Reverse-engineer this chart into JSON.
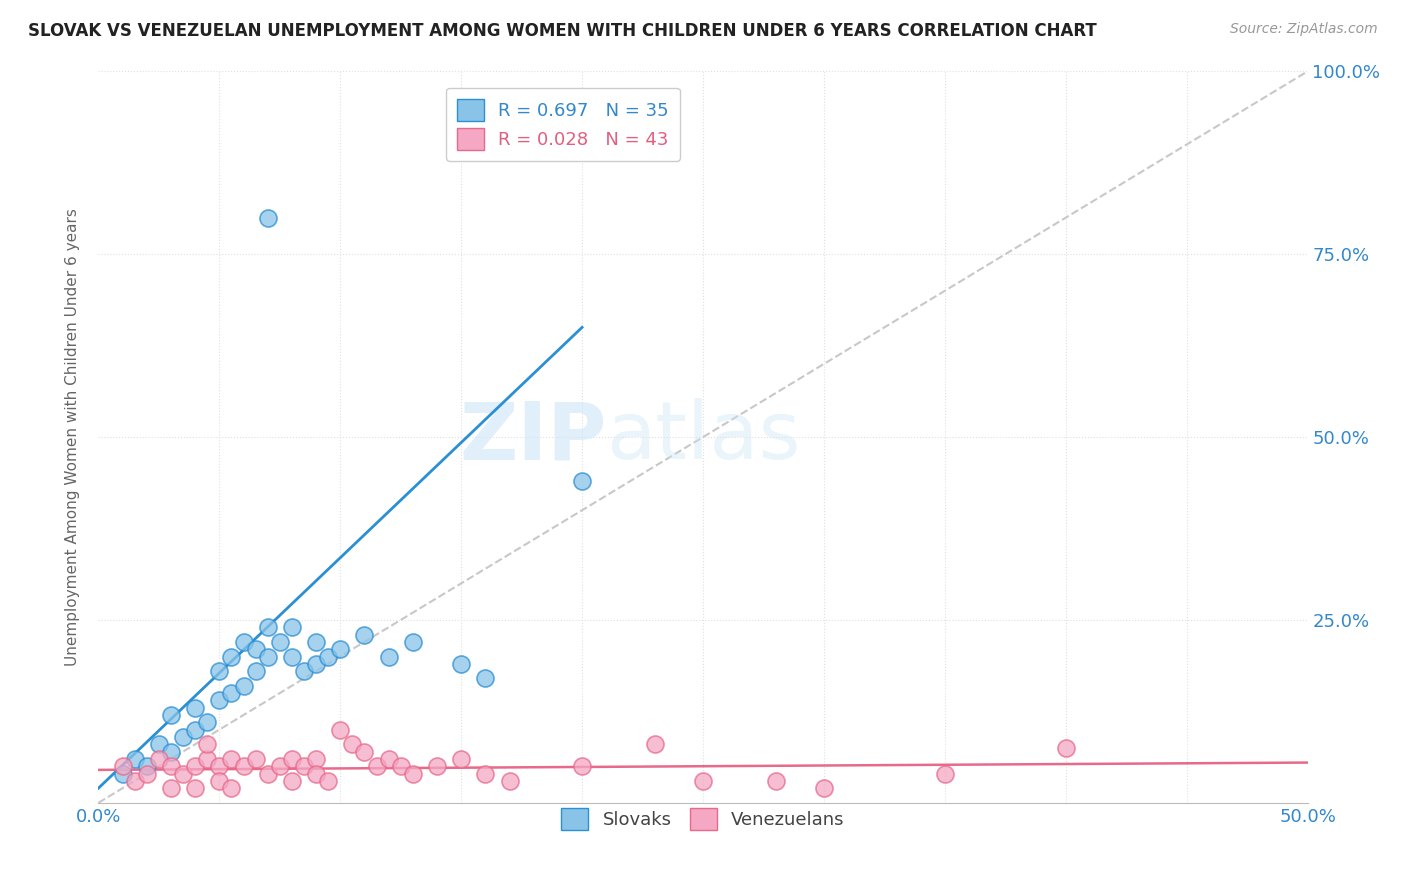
{
  "title": "SLOVAK VS VENEZUELAN UNEMPLOYMENT AMONG WOMEN WITH CHILDREN UNDER 6 YEARS CORRELATION CHART",
  "source": "Source: ZipAtlas.com",
  "ylabel": "Unemployment Among Women with Children Under 6 years",
  "xlim": [
    0.0,
    0.5
  ],
  "ylim": [
    0.0,
    1.0
  ],
  "xticks": [
    0.0,
    0.05,
    0.1,
    0.15,
    0.2,
    0.25,
    0.3,
    0.35,
    0.4,
    0.45,
    0.5
  ],
  "yticks": [
    0.0,
    0.25,
    0.5,
    0.75,
    1.0
  ],
  "xtick_labels": [
    "0.0%",
    "",
    "",
    "",
    "",
    "",
    "",
    "",
    "",
    "",
    "50.0%"
  ],
  "ytick_labels_right": [
    "",
    "25.0%",
    "50.0%",
    "75.0%",
    "100.0%"
  ],
  "slovak_R": 0.697,
  "slovak_N": 35,
  "venezuelan_R": 0.028,
  "venezuelan_N": 43,
  "slovak_color": "#89c4e8",
  "venezuelan_color": "#f4a8c4",
  "slovak_line_color": "#2b8fd4",
  "venezuelan_line_color": "#e8698a",
  "diagonal_color": "#c8c8c8",
  "watermark_zip": "ZIP",
  "watermark_atlas": "atlas",
  "background_color": "#ffffff",
  "grid_color": "#e0e0e0",
  "slovak_points": [
    [
      0.01,
      0.04
    ],
    [
      0.015,
      0.06
    ],
    [
      0.02,
      0.05
    ],
    [
      0.025,
      0.08
    ],
    [
      0.03,
      0.07
    ],
    [
      0.03,
      0.12
    ],
    [
      0.035,
      0.09
    ],
    [
      0.04,
      0.1
    ],
    [
      0.04,
      0.13
    ],
    [
      0.045,
      0.11
    ],
    [
      0.05,
      0.14
    ],
    [
      0.05,
      0.18
    ],
    [
      0.055,
      0.15
    ],
    [
      0.055,
      0.2
    ],
    [
      0.06,
      0.16
    ],
    [
      0.06,
      0.22
    ],
    [
      0.065,
      0.18
    ],
    [
      0.065,
      0.21
    ],
    [
      0.07,
      0.2
    ],
    [
      0.07,
      0.24
    ],
    [
      0.075,
      0.22
    ],
    [
      0.08,
      0.24
    ],
    [
      0.08,
      0.2
    ],
    [
      0.085,
      0.18
    ],
    [
      0.09,
      0.19
    ],
    [
      0.09,
      0.22
    ],
    [
      0.095,
      0.2
    ],
    [
      0.1,
      0.21
    ],
    [
      0.11,
      0.23
    ],
    [
      0.12,
      0.2
    ],
    [
      0.13,
      0.22
    ],
    [
      0.15,
      0.19
    ],
    [
      0.07,
      0.8
    ],
    [
      0.2,
      0.44
    ],
    [
      0.16,
      0.17
    ]
  ],
  "venezuelan_points": [
    [
      0.01,
      0.05
    ],
    [
      0.015,
      0.03
    ],
    [
      0.02,
      0.04
    ],
    [
      0.025,
      0.06
    ],
    [
      0.03,
      0.05
    ],
    [
      0.03,
      0.02
    ],
    [
      0.035,
      0.04
    ],
    [
      0.04,
      0.05
    ],
    [
      0.04,
      0.02
    ],
    [
      0.045,
      0.06
    ],
    [
      0.05,
      0.05
    ],
    [
      0.05,
      0.03
    ],
    [
      0.055,
      0.06
    ],
    [
      0.055,
      0.02
    ],
    [
      0.06,
      0.05
    ],
    [
      0.065,
      0.06
    ],
    [
      0.07,
      0.04
    ],
    [
      0.075,
      0.05
    ],
    [
      0.08,
      0.06
    ],
    [
      0.08,
      0.03
    ],
    [
      0.085,
      0.05
    ],
    [
      0.09,
      0.06
    ],
    [
      0.09,
      0.04
    ],
    [
      0.095,
      0.03
    ],
    [
      0.1,
      0.1
    ],
    [
      0.105,
      0.08
    ],
    [
      0.11,
      0.07
    ],
    [
      0.115,
      0.05
    ],
    [
      0.12,
      0.06
    ],
    [
      0.125,
      0.05
    ],
    [
      0.13,
      0.04
    ],
    [
      0.14,
      0.05
    ],
    [
      0.15,
      0.06
    ],
    [
      0.16,
      0.04
    ],
    [
      0.17,
      0.03
    ],
    [
      0.2,
      0.05
    ],
    [
      0.23,
      0.08
    ],
    [
      0.25,
      0.03
    ],
    [
      0.28,
      0.03
    ],
    [
      0.3,
      0.02
    ],
    [
      0.35,
      0.04
    ],
    [
      0.4,
      0.075
    ],
    [
      0.045,
      0.08
    ]
  ]
}
